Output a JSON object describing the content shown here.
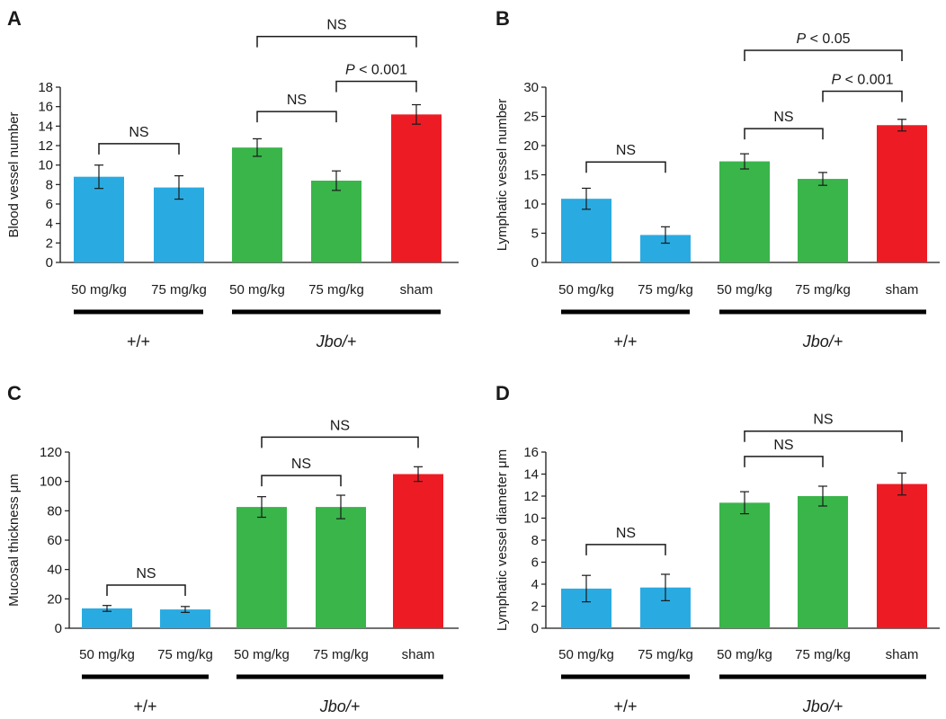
{
  "colors": {
    "wt": "#29abe2",
    "jbo_treated": "#39b54a",
    "sham": "#ed1c24",
    "axis": "#1a1a1a"
  },
  "chart_data": [
    {
      "panel": "A",
      "type": "bar",
      "ylabel": "Blood vessel number",
      "ylim": [
        0,
        18
      ],
      "yticks": [
        0,
        2,
        4,
        6,
        8,
        10,
        12,
        14,
        16,
        18
      ],
      "categories": [
        "50 mg/kg",
        "75 mg/kg",
        "50 mg/kg",
        "75 mg/kg",
        "sham"
      ],
      "values": [
        8.8,
        7.7,
        11.8,
        8.4,
        15.2
      ],
      "errors": [
        1.2,
        1.2,
        0.9,
        1.0,
        1.0
      ],
      "bar_colors": [
        "wt",
        "wt",
        "jbo_treated",
        "jbo_treated",
        "sham"
      ],
      "groups": [
        {
          "label": "+/+",
          "italic": false,
          "from": 0,
          "to": 1
        },
        {
          "label": "Jbo/+",
          "italic": true,
          "from": 2,
          "to": 4
        }
      ],
      "comparisons": [
        {
          "from": 0,
          "to": 1,
          "y": 12.2,
          "label": "NS"
        },
        {
          "from": 2,
          "to": 3,
          "y": 15.5,
          "label": "NS"
        },
        {
          "from": 3,
          "to": 4,
          "y": 18.6,
          "label": "P < 0.001"
        },
        {
          "from": 2,
          "to": 4,
          "y": 23.2,
          "label": "NS"
        }
      ]
    },
    {
      "panel": "B",
      "type": "bar",
      "ylabel": "Lymphatic vessel number",
      "ylim": [
        0,
        30
      ],
      "yticks": [
        0,
        5,
        10,
        15,
        20,
        25,
        30
      ],
      "categories": [
        "50 mg/kg",
        "75 mg/kg",
        "50 mg/kg",
        "75 mg/kg",
        "sham"
      ],
      "values": [
        10.9,
        4.7,
        17.3,
        14.3,
        23.5
      ],
      "errors": [
        1.8,
        1.4,
        1.3,
        1.1,
        1.0
      ],
      "bar_colors": [
        "wt",
        "wt",
        "jbo_treated",
        "jbo_treated",
        "sham"
      ],
      "groups": [
        {
          "label": "+/+",
          "italic": false,
          "from": 0,
          "to": 1
        },
        {
          "label": "Jbo/+",
          "italic": true,
          "from": 2,
          "to": 4
        }
      ],
      "comparisons": [
        {
          "from": 0,
          "to": 1,
          "y": 17.2,
          "label": "NS"
        },
        {
          "from": 2,
          "to": 3,
          "y": 22.9,
          "label": "NS"
        },
        {
          "from": 3,
          "to": 4,
          "y": 29.3,
          "label": "P < 0.001"
        },
        {
          "from": 2,
          "to": 4,
          "y": 36.3,
          "label": "P < 0.05"
        }
      ]
    },
    {
      "panel": "C",
      "type": "bar",
      "ylabel": "Mucosal thickness μm",
      "ylim": [
        0,
        120
      ],
      "yticks": [
        0,
        20,
        40,
        60,
        80,
        100,
        120
      ],
      "categories": [
        "50 mg/kg",
        "75 mg/kg",
        "50 mg/kg",
        "75 mg/kg",
        "sham"
      ],
      "values": [
        13.5,
        12.8,
        82.6,
        82.6,
        105.0
      ],
      "errors": [
        2.0,
        2.0,
        7.0,
        8.0,
        5.0
      ],
      "bar_colors": [
        "wt",
        "wt",
        "jbo_treated",
        "jbo_treated",
        "sham"
      ],
      "groups": [
        {
          "label": "+/+",
          "italic": false,
          "from": 0,
          "to": 1
        },
        {
          "label": "Jbo/+",
          "italic": true,
          "from": 2,
          "to": 4
        }
      ],
      "comparisons": [
        {
          "from": 0,
          "to": 1,
          "y": 29.4,
          "label": "NS"
        },
        {
          "from": 2,
          "to": 3,
          "y": 104.0,
          "label": "NS"
        },
        {
          "from": 2,
          "to": 4,
          "y": 130.2,
          "label": "NS"
        }
      ]
    },
    {
      "panel": "D",
      "type": "bar",
      "ylabel": "Lymphatic vessel diameter μm",
      "ylim": [
        0,
        16
      ],
      "yticks": [
        0,
        2,
        4,
        6,
        8,
        10,
        12,
        14,
        16
      ],
      "categories": [
        "50 mg/kg",
        "75 mg/kg",
        "50 mg/kg",
        "75 mg/kg",
        "sham"
      ],
      "values": [
        3.6,
        3.7,
        11.4,
        12.0,
        13.1
      ],
      "errors": [
        1.2,
        1.2,
        1.0,
        0.9,
        1.0
      ],
      "bar_colors": [
        "wt",
        "wt",
        "jbo_treated",
        "jbo_treated",
        "sham"
      ],
      "groups": [
        {
          "label": "+/+",
          "italic": false,
          "from": 0,
          "to": 1
        },
        {
          "label": "Jbo/+",
          "italic": true,
          "from": 2,
          "to": 4
        }
      ],
      "comparisons": [
        {
          "from": 0,
          "to": 1,
          "y": 7.6,
          "label": "NS"
        },
        {
          "from": 2,
          "to": 3,
          "y": 15.6,
          "label": "NS"
        },
        {
          "from": 2,
          "to": 4,
          "y": 17.9,
          "label": "NS"
        }
      ]
    }
  ]
}
